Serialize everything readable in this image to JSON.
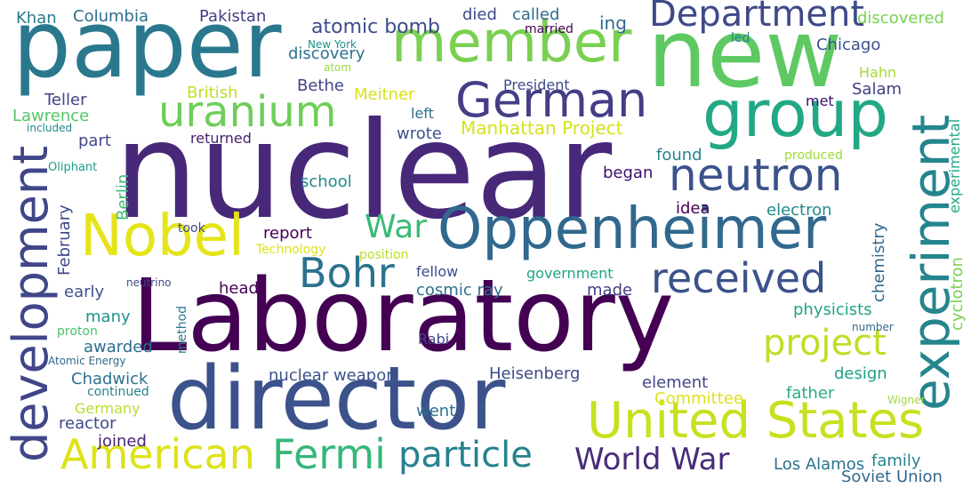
{
  "words": [
    {
      "text": "nuclear",
      "color": "#482878"
    },
    {
      "text": "Laboratory",
      "color": "#440154"
    },
    {
      "text": "paper",
      "color": "#2a788e"
    },
    {
      "text": "director",
      "color": "#3b528b"
    },
    {
      "text": "new",
      "color": "#5ec962"
    },
    {
      "text": "Oppenheimer",
      "color": "#31688e"
    },
    {
      "text": "member",
      "color": "#7ad151"
    },
    {
      "text": "group",
      "color": "#22a884"
    },
    {
      "text": "Department",
      "color": "#3e4989"
    },
    {
      "text": "German",
      "color": "#433e85"
    },
    {
      "text": "uranium",
      "color": "#6ece58"
    },
    {
      "text": "neutron",
      "color": "#3b528b"
    },
    {
      "text": "development",
      "color": "#404688"
    },
    {
      "text": "experiment",
      "color": "#25858e"
    },
    {
      "text": "Nobel",
      "color": "#e5e419"
    },
    {
      "text": "United States",
      "color": "#c8e020"
    },
    {
      "text": "received",
      "color": "#3b528b"
    },
    {
      "text": "American",
      "color": "#dde318"
    },
    {
      "text": "Fermi",
      "color": "#35b779"
    },
    {
      "text": "particle",
      "color": "#26828e"
    },
    {
      "text": "World War",
      "color": "#472c7a"
    },
    {
      "text": "Bohr",
      "color": "#2c728e"
    },
    {
      "text": "project",
      "color": "#bddf26"
    },
    {
      "text": "War",
      "color": "#3aba76"
    },
    {
      "text": "Manhattan Project",
      "color": "#d5e21a"
    },
    {
      "text": "atomic bomb",
      "color": "#3e4c8a"
    },
    {
      "text": "Pakistan",
      "color": "#424086"
    },
    {
      "text": "Columbia",
      "color": "#2e6e8e"
    },
    {
      "text": "Khan",
      "color": "#2a788e"
    },
    {
      "text": "died",
      "color": "#3e4a89"
    },
    {
      "text": "called",
      "color": "#2f6b8e"
    },
    {
      "text": "married",
      "color": "#440154"
    },
    {
      "text": "ing",
      "color": "#31688e"
    },
    {
      "text": "discovered",
      "color": "#7ad151"
    },
    {
      "text": "New York",
      "color": "#21918c"
    },
    {
      "text": "discovery",
      "color": "#2c728e"
    },
    {
      "text": "atom",
      "color": "#9ad93c"
    },
    {
      "text": "led",
      "color": "#26828e"
    },
    {
      "text": "Chicago",
      "color": "#3b528b"
    },
    {
      "text": "Hahn",
      "color": "#a5db36"
    },
    {
      "text": "President",
      "color": "#3e4c8a"
    },
    {
      "text": "Salam",
      "color": "#424086"
    },
    {
      "text": "met",
      "color": "#3b0f70"
    },
    {
      "text": "Teller",
      "color": "#414487"
    },
    {
      "text": "British",
      "color": "#bddf26"
    },
    {
      "text": "Bethe",
      "color": "#404688"
    },
    {
      "text": "Meitner",
      "color": "#d8e219"
    },
    {
      "text": "Lawrence",
      "color": "#54c568"
    },
    {
      "text": "included",
      "color": "#23898e"
    },
    {
      "text": "left",
      "color": "#2d708e"
    },
    {
      "text": "wrote",
      "color": "#3b528b"
    },
    {
      "text": "part",
      "color": "#3f4788"
    },
    {
      "text": "returned",
      "color": "#482071"
    },
    {
      "text": "found",
      "color": "#26828e"
    },
    {
      "text": "produced",
      "color": "#9fda3a"
    },
    {
      "text": "Soviet Union",
      "color": "#31688e"
    },
    {
      "text": "experimental",
      "color": "#22a884"
    },
    {
      "text": "Oliphant",
      "color": "#1fa088"
    },
    {
      "text": "Berlin",
      "color": "#3dbc74"
    },
    {
      "text": "school",
      "color": "#238a8d"
    },
    {
      "text": "began",
      "color": "#3b0f70"
    },
    {
      "text": "idea",
      "color": "#440154"
    },
    {
      "text": "electron",
      "color": "#23898e"
    },
    {
      "text": "chemistry",
      "color": "#31688e"
    },
    {
      "text": "cyclotron",
      "color": "#7ad151"
    },
    {
      "text": "February",
      "color": "#3e4a89"
    },
    {
      "text": "took",
      "color": "#3e4c8a"
    },
    {
      "text": "report",
      "color": "#440154"
    },
    {
      "text": "Technology",
      "color": "#dde318"
    },
    {
      "text": "position",
      "color": "#b5de2b"
    },
    {
      "text": "fellow",
      "color": "#3e4a89"
    },
    {
      "text": "government",
      "color": "#20a486"
    },
    {
      "text": "neutrino",
      "color": "#3e4989"
    },
    {
      "text": "head",
      "color": "#440154"
    },
    {
      "text": "cosmic ray",
      "color": "#2d708e"
    },
    {
      "text": "made",
      "color": "#424086"
    },
    {
      "text": "early",
      "color": "#3b528b"
    },
    {
      "text": "physicists",
      "color": "#20a486"
    },
    {
      "text": "many",
      "color": "#21918c"
    },
    {
      "text": "proton",
      "color": "#4ac16d"
    },
    {
      "text": "method",
      "color": "#2a788e"
    },
    {
      "text": "Rabi",
      "color": "#414487"
    },
    {
      "text": "number",
      "color": "#31688e"
    },
    {
      "text": "awarded",
      "color": "#2e6e8e"
    },
    {
      "text": "Atomic Energy",
      "color": "#31688e"
    },
    {
      "text": "design",
      "color": "#1fa188"
    },
    {
      "text": "Heisenberg",
      "color": "#3e4a89"
    },
    {
      "text": "Chadwick",
      "color": "#2c728e"
    },
    {
      "text": "nuclear weapon",
      "color": "#3b528b"
    },
    {
      "text": "element",
      "color": "#404688"
    },
    {
      "text": "continued",
      "color": "#26828e"
    },
    {
      "text": "father",
      "color": "#26ad81"
    },
    {
      "text": "Committee",
      "color": "#dde318"
    },
    {
      "text": "Wigner",
      "color": "#9fda3a"
    },
    {
      "text": "Germany",
      "color": "#b5de2b"
    },
    {
      "text": "reactor",
      "color": "#3e4989"
    },
    {
      "text": "went",
      "color": "#2c728e"
    },
    {
      "text": "joined",
      "color": "#482475"
    },
    {
      "text": "Los Alamos",
      "color": "#2c728e"
    },
    {
      "text": "family",
      "color": "#26828e"
    }
  ]
}
